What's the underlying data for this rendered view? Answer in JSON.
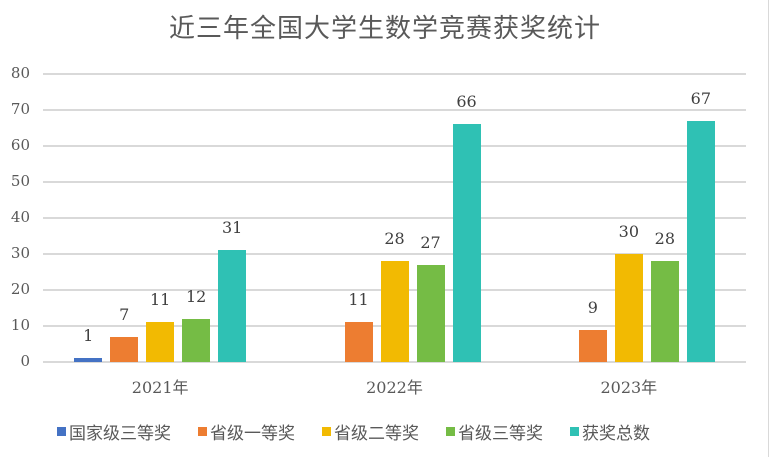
{
  "chart_data": {
    "type": "bar",
    "title": "近三年全国大学生数学竞赛获奖统计",
    "categories": [
      "2021年",
      "2022年",
      "2023年"
    ],
    "series": [
      {
        "name": "国家级三等奖",
        "color": "#4472C4",
        "values": [
          1,
          0,
          0
        ]
      },
      {
        "name": "省级一等奖",
        "color": "#ED7D31",
        "values": [
          7,
          11,
          9
        ]
      },
      {
        "name": "省级二等奖",
        "color": "#F2BA02",
        "values": [
          11,
          28,
          30
        ]
      },
      {
        "name": "省级三等奖",
        "color": "#75BC45",
        "values": [
          12,
          27,
          28
        ]
      },
      {
        "name": "获奖总数",
        "color": "#2FC1B4",
        "values": [
          31,
          66,
          67
        ]
      }
    ],
    "data_labels_visible": [
      [
        true,
        true,
        true,
        true,
        true
      ],
      [
        false,
        true,
        true,
        true,
        true
      ],
      [
        false,
        true,
        true,
        true,
        true
      ]
    ],
    "xlabel": "",
    "ylabel": "",
    "ylim": [
      0,
      80
    ],
    "yticks": [
      0,
      10,
      20,
      30,
      40,
      50,
      60,
      70,
      80
    ],
    "grid": true,
    "legend_position": "bottom"
  }
}
